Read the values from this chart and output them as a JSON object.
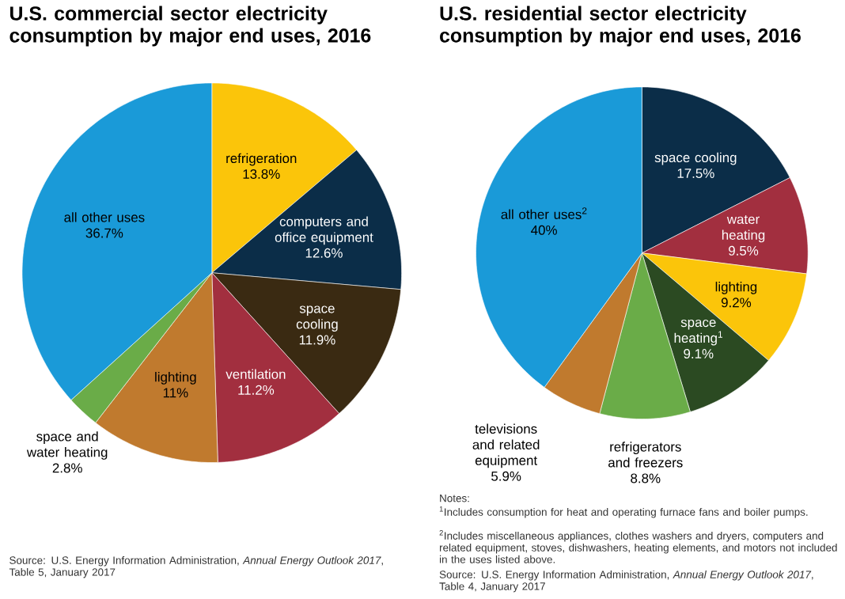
{
  "chart_data": [
    {
      "type": "pie",
      "title": "U.S. commercial sector electricity consumption by major end uses, 2016",
      "categories": [
        "refrigeration",
        "computers and office equipment",
        "space cooling",
        "ventilation",
        "lighting",
        "space and water heating",
        "all other uses"
      ],
      "values": [
        13.8,
        12.6,
        11.9,
        11.2,
        11,
        2.8,
        36.7
      ],
      "value_labels": [
        "13.8%",
        "12.6%",
        "11.9%",
        "11.2%",
        "11%",
        "2.8%",
        "36.7%"
      ],
      "colors": [
        "#fbc50a",
        "#0b2d48",
        "#3a2a12",
        "#a22f3f",
        "#c07a2e",
        "#6aac48",
        "#1a9ad8"
      ],
      "annotations": [
        "Source: U.S. Energy Information Administration, *Annual Energy Outlook 2017*, Table 5, January 2017"
      ]
    },
    {
      "type": "pie",
      "title": "U.S. residential sector electricity consumption by major end uses, 2016",
      "categories": [
        "space cooling",
        "water heating",
        "lighting",
        "space heating$^{1}$",
        "refrigerators and freezers",
        "televisions and related equipment",
        "all other uses$^{2}$"
      ],
      "values": [
        17.5,
        9.5,
        9.2,
        9.1,
        8.8,
        5.9,
        40
      ],
      "value_labels": [
        "17.5%",
        "9.5%",
        "9.2%",
        "9.1%",
        "8.8%",
        "5.9%",
        "40%"
      ],
      "colors": [
        "#0b2d48",
        "#a22f3f",
        "#fbc50a",
        "#2b4a22",
        "#6aac48",
        "#c07a2e",
        "#1a9ad8"
      ],
      "annotations": [
        "Notes:",
        "$^{1}$Includes consumption for heat and operating furnace fans and boiler pumps.",
        "$^{2}$Includes miscellaneous appliances, clothes washers and dryers, computers and related equipment, stoves, dishwashers, heating elements, and motors not included in the uses listed above.",
        "Source: U.S. Energy Information Administration, *Annual Energy Outlook 2017*, Table 4, January 2017"
      ]
    }
  ]
}
